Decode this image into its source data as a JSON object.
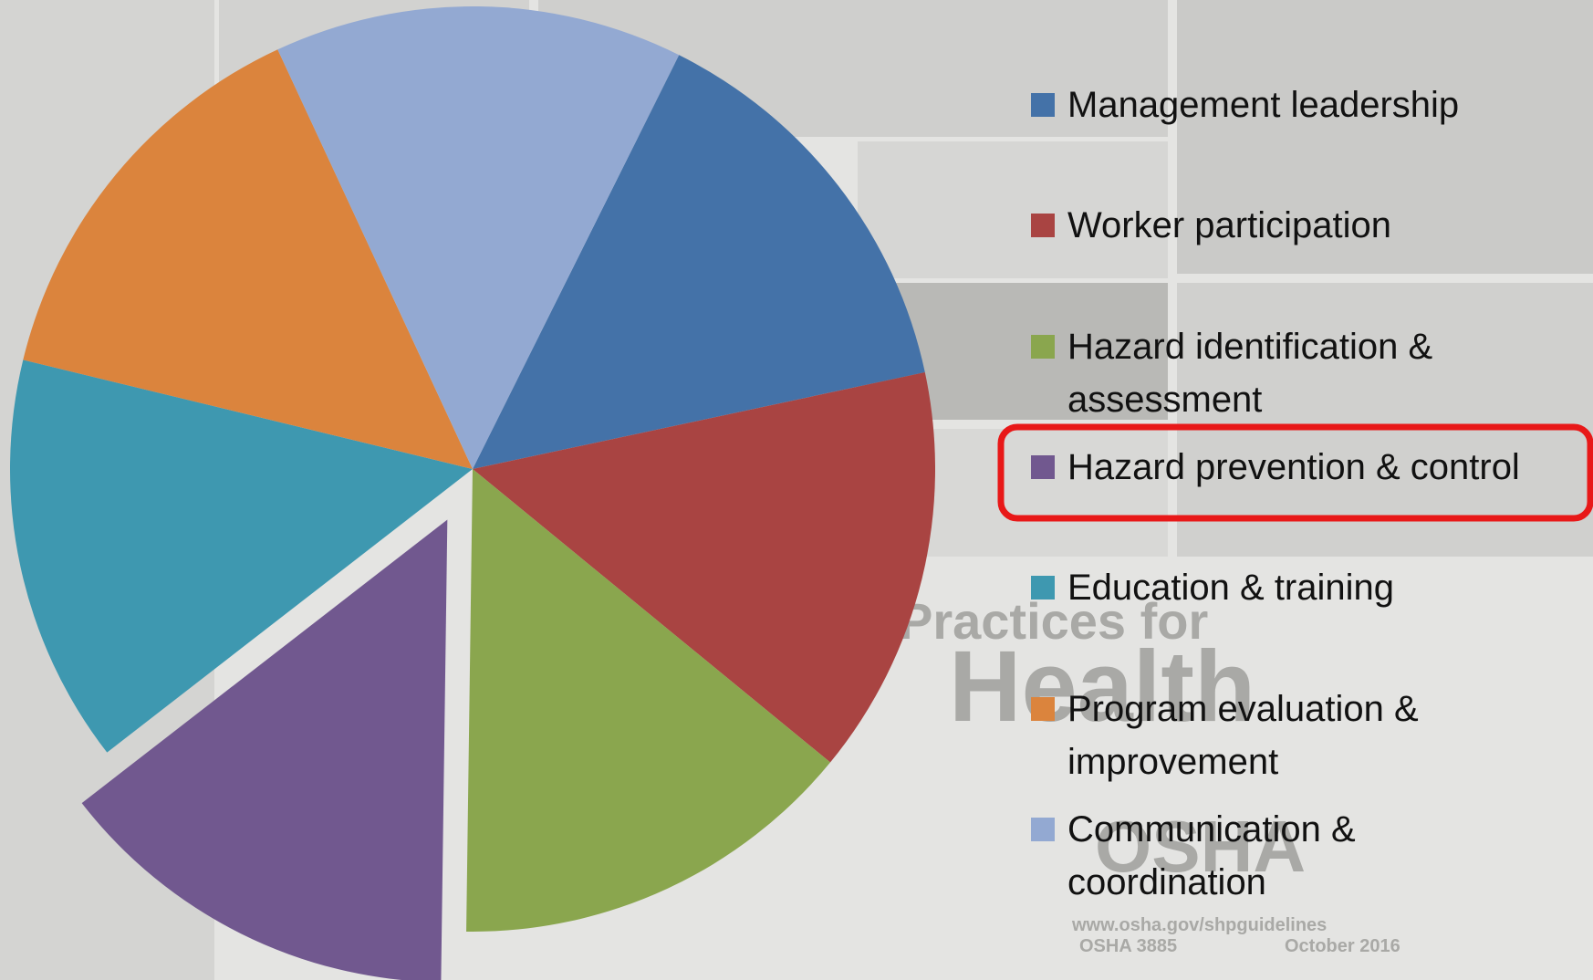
{
  "chart_data": {
    "type": "pie",
    "categories": [
      "Management leadership",
      "Worker participation",
      "Hazard identification & assessment",
      "Hazard prevention & control",
      "Education & training",
      "Program evaluation & improvement",
      "Communication & coordination"
    ],
    "values": [
      14.29,
      14.29,
      14.29,
      14.29,
      14.29,
      14.29,
      14.29
    ],
    "colors": [
      "#4472a8",
      "#a94442",
      "#8aa64e",
      "#71588f",
      "#3e98b0",
      "#db843d",
      "#93a9d2"
    ],
    "explode": [
      false,
      false,
      false,
      true,
      false,
      false,
      false
    ],
    "annotations": [
      "Practices for",
      "Health",
      "OSHA",
      "www.osha.gov/shpguidelines",
      "OSHA 3885",
      "October 2016"
    ]
  }
}
